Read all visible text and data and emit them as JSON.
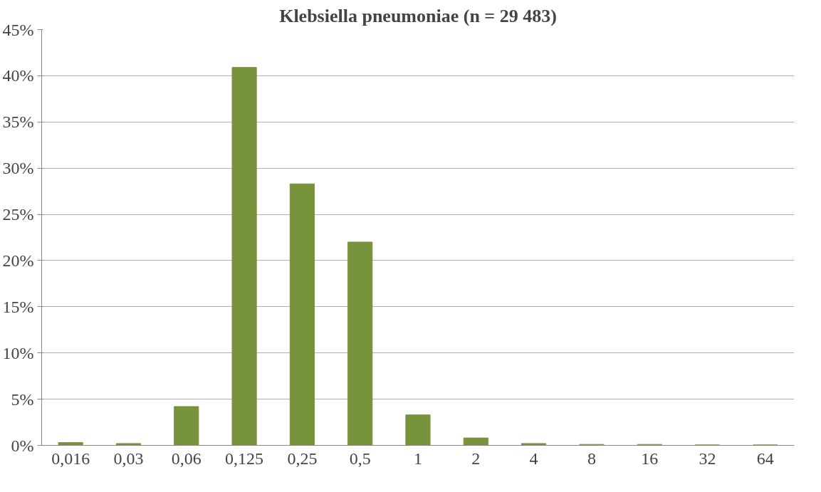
{
  "chart_data": {
    "type": "bar",
    "title": "Klebsiella pneumoniae (n = 29 483)",
    "categories": [
      "0,016",
      "0,03",
      "0,06",
      "0,125",
      "0,25",
      "0,5",
      "1",
      "2",
      "4",
      "8",
      "16",
      "32",
      "64"
    ],
    "values": [
      0.3,
      0.2,
      4.2,
      40.9,
      28.3,
      22.0,
      3.3,
      0.8,
      0.2,
      0.1,
      0.1,
      0.05,
      0.05
    ],
    "color": "#77933c",
    "ylim": [
      0,
      45
    ],
    "yticks": [
      {
        "value": 0,
        "label": "0%"
      },
      {
        "value": 5,
        "label": "5%"
      },
      {
        "value": 10,
        "label": "10%"
      },
      {
        "value": 15,
        "label": "15%"
      },
      {
        "value": 20,
        "label": "20%"
      },
      {
        "value": 25,
        "label": "25%"
      },
      {
        "value": 30,
        "label": "30%"
      },
      {
        "value": 35,
        "label": "35%"
      },
      {
        "value": 40,
        "label": "40%"
      },
      {
        "value": 45,
        "label": "45%"
      }
    ],
    "grid": "y"
  }
}
